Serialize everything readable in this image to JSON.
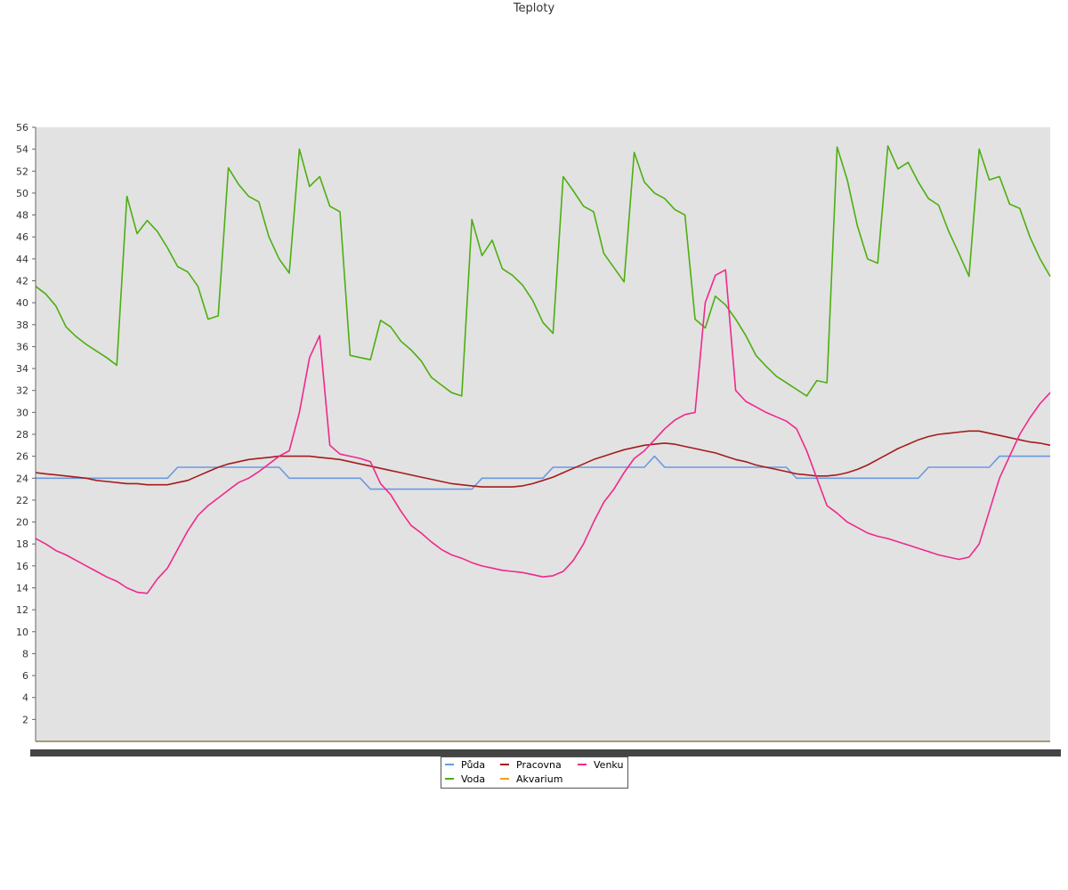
{
  "chart_data": {
    "type": "line",
    "title": "Teploty",
    "xlabel": "",
    "ylabel": "",
    "ylim": [
      0,
      56
    ],
    "yticks": [
      2,
      4,
      6,
      8,
      10,
      12,
      14,
      16,
      18,
      20,
      22,
      24,
      26,
      28,
      30,
      32,
      34,
      36,
      38,
      40,
      42,
      44,
      46,
      48,
      50,
      52,
      54,
      56
    ],
    "grid": false,
    "legend_position": "bottom",
    "x": [
      0,
      2,
      4,
      6,
      8,
      10,
      12,
      14,
      16,
      18,
      20,
      22,
      24,
      26,
      28,
      30,
      32,
      34,
      36,
      38,
      40,
      42,
      44,
      46,
      48,
      50,
      52,
      54,
      56,
      58,
      60,
      62,
      64,
      66,
      68,
      70,
      72,
      74,
      76,
      78,
      80,
      82,
      84,
      86,
      88,
      90,
      92,
      94,
      96,
      98,
      100,
      102,
      104,
      106,
      108,
      110,
      112,
      114,
      116,
      118,
      120,
      122,
      124,
      126,
      128,
      130,
      132,
      134,
      136,
      138,
      140,
      142,
      144,
      146,
      148,
      150,
      152,
      154,
      156,
      158,
      160,
      162,
      164,
      166,
      168,
      170,
      172,
      174,
      176,
      178,
      180,
      182,
      184,
      186,
      188,
      190,
      192,
      194,
      196,
      198,
      200
    ],
    "series": [
      {
        "name": "Půda",
        "color": "#6a9ae0",
        "values": [
          24,
          24,
          24,
          24,
          24,
          24,
          24,
          24,
          24,
          24,
          24,
          24,
          24,
          24,
          25,
          25,
          25,
          25,
          25,
          25,
          25,
          25,
          25,
          25,
          25,
          24,
          24,
          24,
          24,
          24,
          24,
          24,
          24,
          23,
          23,
          23,
          23,
          23,
          23,
          23,
          23,
          23,
          23,
          23,
          24,
          24,
          24,
          24,
          24,
          24,
          24,
          25,
          25,
          25,
          25,
          25,
          25,
          25,
          25,
          25,
          25,
          26,
          25,
          25,
          25,
          25,
          25,
          25,
          25,
          25,
          25,
          25,
          25,
          25,
          25,
          24,
          24,
          24,
          24,
          24,
          24,
          24,
          24,
          24,
          24,
          24,
          24,
          24,
          25,
          25,
          25,
          25,
          25,
          25,
          25,
          26,
          26,
          26,
          26,
          26,
          26
        ]
      },
      {
        "name": "Voda",
        "color": "#4caf10",
        "values": [
          41.5,
          40.8,
          39.7,
          37.8,
          36.9,
          36.2,
          35.6,
          35.0,
          34.3,
          49.7,
          46.3,
          47.5,
          46.5,
          45.0,
          43.3,
          42.8,
          41.5,
          38.5,
          38.8,
          52.3,
          50.8,
          49.7,
          49.2,
          46.0,
          44.0,
          42.7,
          54.0,
          50.6,
          51.5,
          48.8,
          48.3,
          35.2,
          35.0,
          34.8,
          38.4,
          37.8,
          36.5,
          35.7,
          34.7,
          33.2,
          32.5,
          31.8,
          31.5,
          47.6,
          44.3,
          45.7,
          43.1,
          42.5,
          41.6,
          40.2,
          38.2,
          37.2,
          51.5,
          50.2,
          48.8,
          48.3,
          44.5,
          43.2,
          41.9,
          53.7,
          51.0,
          50.0,
          49.5,
          48.5,
          48.0,
          38.5,
          37.7,
          40.6,
          39.8,
          38.5,
          37.0,
          35.2,
          34.2,
          33.3,
          32.7,
          32.1,
          31.5,
          32.9,
          32.7,
          54.2,
          51.2,
          47.0,
          44.0,
          43.6,
          54.3,
          52.2,
          52.8,
          51.0,
          49.5,
          48.9,
          46.5,
          44.5,
          42.4,
          54.0,
          51.2,
          51.5,
          49.0,
          48.6,
          46.0,
          44.0,
          42.4
        ]
      },
      {
        "name": "Pracovna",
        "color": "#a51c1c",
        "values": [
          24.5,
          24.4,
          24.3,
          24.2,
          24.1,
          24.0,
          23.8,
          23.7,
          23.6,
          23.5,
          23.5,
          23.4,
          23.4,
          23.4,
          23.6,
          23.8,
          24.2,
          24.6,
          25.0,
          25.3,
          25.5,
          25.7,
          25.8,
          25.9,
          26.0,
          26.0,
          26.0,
          26.0,
          25.9,
          25.8,
          25.7,
          25.5,
          25.3,
          25.1,
          24.9,
          24.7,
          24.5,
          24.3,
          24.1,
          23.9,
          23.7,
          23.5,
          23.4,
          23.3,
          23.2,
          23.2,
          23.2,
          23.2,
          23.3,
          23.5,
          23.8,
          24.1,
          24.5,
          24.9,
          25.3,
          25.7,
          26.0,
          26.3,
          26.6,
          26.8,
          27.0,
          27.1,
          27.2,
          27.1,
          26.9,
          26.7,
          26.5,
          26.3,
          26.0,
          25.7,
          25.5,
          25.2,
          25.0,
          24.8,
          24.6,
          24.4,
          24.3,
          24.2,
          24.2,
          24.3,
          24.5,
          24.8,
          25.2,
          25.7,
          26.2,
          26.7,
          27.1,
          27.5,
          27.8,
          28.0,
          28.1,
          28.2,
          28.3,
          28.3,
          28.1,
          27.9,
          27.7,
          27.5,
          27.3,
          27.2,
          27.0
        ]
      },
      {
        "name": "Akvarium",
        "color": "#f0a020",
        "values": [
          0,
          0,
          0,
          0,
          0,
          0,
          0,
          0,
          0,
          0,
          0,
          0,
          0,
          0,
          0,
          0,
          0,
          0,
          0,
          0,
          0,
          0,
          0,
          0,
          0,
          0,
          0,
          0,
          0,
          0,
          0,
          0,
          0,
          0,
          0,
          0,
          0,
          0,
          0,
          0,
          0,
          0,
          0,
          0,
          0,
          0,
          0,
          0,
          0,
          0,
          0,
          0,
          0,
          0,
          0,
          0,
          0,
          0,
          0,
          0,
          0,
          0,
          0,
          0,
          0,
          0,
          0,
          0,
          0,
          0,
          0,
          0,
          0,
          0,
          0,
          0,
          0,
          0,
          0,
          0,
          0,
          0,
          0,
          0,
          0,
          0,
          0,
          0,
          0,
          0,
          0,
          0,
          0,
          0,
          0,
          0,
          0,
          0,
          0,
          0,
          0
        ]
      },
      {
        "name": "Venku",
        "color": "#f0288c",
        "values": [
          18.5,
          18.0,
          17.4,
          17.0,
          16.5,
          16.0,
          15.5,
          15.0,
          14.6,
          14.0,
          13.6,
          13.5,
          14.8,
          15.8,
          17.5,
          19.2,
          20.6,
          21.5,
          22.2,
          22.9,
          23.6,
          24.0,
          24.6,
          25.3,
          26.0,
          26.5,
          30.0,
          35.0,
          37.0,
          27.0,
          26.2,
          26.0,
          25.8,
          25.5,
          23.5,
          22.5,
          21.0,
          19.7,
          19.0,
          18.2,
          17.5,
          17.0,
          16.7,
          16.3,
          16.0,
          15.8,
          15.6,
          15.5,
          15.4,
          15.2,
          15.0,
          15.1,
          15.5,
          16.5,
          18.0,
          20.0,
          21.8,
          23.0,
          24.5,
          25.8,
          26.5,
          27.5,
          28.5,
          29.3,
          29.8,
          30.0,
          40.0,
          42.5,
          43.0,
          32.0,
          31.0,
          30.5,
          30.0,
          29.6,
          29.2,
          28.5,
          26.5,
          24.0,
          21.5,
          20.8,
          20.0,
          19.5,
          19.0,
          18.7,
          18.5,
          18.2,
          17.9,
          17.6,
          17.3,
          17.0,
          16.8,
          16.6,
          16.8,
          18.0,
          21.0,
          24.0,
          26.0,
          28.0,
          29.5,
          30.8,
          31.8
        ]
      }
    ]
  }
}
